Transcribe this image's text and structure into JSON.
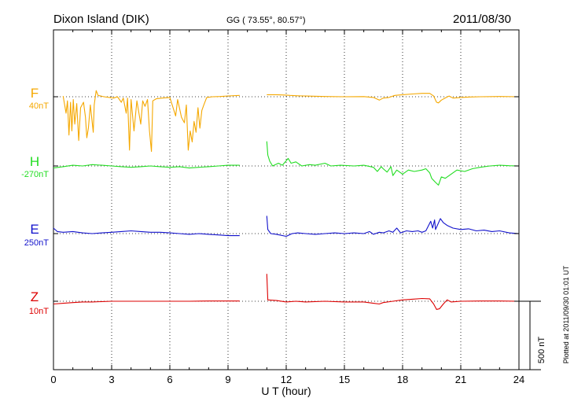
{
  "header": {
    "station": "Dixon Island (DIK)",
    "coords": "GG ( 73.55°,  80.57°)",
    "date": "2011/08/30"
  },
  "chart_data": {
    "type": "line",
    "xlabel": "U T (hour)",
    "xlim": [
      0,
      24
    ],
    "xticks": [
      "0",
      "3",
      "6",
      "9",
      "12",
      "15",
      "18",
      "21",
      "24"
    ],
    "grid": "dotted vertical lines every 3 hours, dotted baseline per component",
    "scale_bar": {
      "label": "500 nT",
      "value_nT": 500
    },
    "plot_note": "Plotted at 2011/09/30 01:01 UT",
    "series": [
      {
        "name": "F",
        "baseline_label": "40nT",
        "color": "#f5a800",
        "points": [
          [
            0.5,
            5
          ],
          [
            0.65,
            -120
          ],
          [
            0.72,
            -30
          ],
          [
            0.8,
            -280
          ],
          [
            0.88,
            -40
          ],
          [
            0.95,
            -250
          ],
          [
            1.02,
            -20
          ],
          [
            1.1,
            -200
          ],
          [
            1.2,
            -50
          ],
          [
            1.3,
            -320
          ],
          [
            1.4,
            -80
          ],
          [
            1.55,
            -40
          ],
          [
            1.65,
            -150
          ],
          [
            1.72,
            -300
          ],
          [
            1.8,
            -230
          ],
          [
            1.9,
            -60
          ],
          [
            2.05,
            -260
          ],
          [
            2.1,
            -60
          ],
          [
            2.2,
            45
          ],
          [
            2.3,
            10
          ],
          [
            2.45,
            5
          ],
          [
            2.6,
            0
          ],
          [
            2.9,
            -5
          ],
          [
            3.1,
            -10
          ],
          [
            3.3,
            0
          ],
          [
            3.5,
            -40
          ],
          [
            3.6,
            -10
          ],
          [
            3.75,
            -120
          ],
          [
            3.82,
            -10
          ],
          [
            3.92,
            -390
          ],
          [
            4.0,
            -20
          ],
          [
            4.15,
            -250
          ],
          [
            4.3,
            -30
          ],
          [
            4.5,
            -200
          ],
          [
            4.6,
            -30
          ],
          [
            4.72,
            -70
          ],
          [
            4.85,
            -20
          ],
          [
            4.95,
            -250
          ],
          [
            5.05,
            -400
          ],
          [
            5.12,
            -30
          ],
          [
            5.3,
            -15
          ],
          [
            5.6,
            -10
          ],
          [
            6.0,
            -5
          ],
          [
            6.3,
            -140
          ],
          [
            6.4,
            -20
          ],
          [
            6.6,
            -150
          ],
          [
            6.75,
            -190
          ],
          [
            6.85,
            -60
          ],
          [
            6.95,
            -390
          ],
          [
            7.05,
            -250
          ],
          [
            7.15,
            -330
          ],
          [
            7.25,
            -180
          ],
          [
            7.35,
            -260
          ],
          [
            7.45,
            -80
          ],
          [
            7.55,
            -230
          ],
          [
            7.65,
            -100
          ],
          [
            7.75,
            -60
          ],
          [
            7.9,
            -5
          ],
          [
            8.2,
            0
          ],
          [
            8.6,
            2
          ],
          [
            9.0,
            6
          ],
          [
            9.6,
            10
          ],
          [
            null,
            null
          ],
          [
            11.0,
            15
          ],
          [
            11.5,
            15
          ],
          [
            12.0,
            12
          ],
          [
            12.2,
            10
          ],
          [
            12.6,
            7
          ],
          [
            13.0,
            5
          ],
          [
            14.0,
            2
          ],
          [
            15.0,
            0
          ],
          [
            16.0,
            1
          ],
          [
            16.5,
            -5
          ],
          [
            16.8,
            -25
          ],
          [
            17.0,
            -10
          ],
          [
            17.3,
            -5
          ],
          [
            17.6,
            10
          ],
          [
            18.0,
            15
          ],
          [
            18.5,
            20
          ],
          [
            19.0,
            25
          ],
          [
            19.4,
            25
          ],
          [
            19.6,
            5
          ],
          [
            19.75,
            -40
          ],
          [
            19.85,
            -45
          ],
          [
            20.0,
            -25
          ],
          [
            20.25,
            -5
          ],
          [
            20.4,
            5
          ],
          [
            20.6,
            -10
          ],
          [
            21.0,
            -5
          ],
          [
            21.5,
            -2
          ],
          [
            22.0,
            0
          ],
          [
            23.0,
            2
          ],
          [
            24.0,
            0
          ]
        ]
      },
      {
        "name": "H",
        "baseline_label": "-270nT",
        "color": "#22dd22",
        "points": [
          [
            0.0,
            -15
          ],
          [
            0.5,
            -5
          ],
          [
            1.0,
            5
          ],
          [
            1.5,
            0
          ],
          [
            2.0,
            10
          ],
          [
            2.5,
            5
          ],
          [
            3.0,
            0
          ],
          [
            3.5,
            -5
          ],
          [
            4.0,
            -10
          ],
          [
            4.5,
            -5
          ],
          [
            5.0,
            0
          ],
          [
            5.5,
            -5
          ],
          [
            6.0,
            -10
          ],
          [
            6.5,
            -5
          ],
          [
            7.0,
            -15
          ],
          [
            7.5,
            -10
          ],
          [
            8.0,
            -5
          ],
          [
            8.5,
            0
          ],
          [
            9.0,
            5
          ],
          [
            9.6,
            5
          ],
          [
            null,
            null
          ],
          [
            11.0,
            180
          ],
          [
            11.05,
            80
          ],
          [
            11.15,
            35
          ],
          [
            11.3,
            0
          ],
          [
            11.6,
            20
          ],
          [
            11.8,
            5
          ],
          [
            12.1,
            55
          ],
          [
            12.25,
            20
          ],
          [
            12.5,
            30
          ],
          [
            12.8,
            0
          ],
          [
            13.2,
            10
          ],
          [
            13.5,
            5
          ],
          [
            14.0,
            20
          ],
          [
            14.3,
            0
          ],
          [
            14.8,
            5
          ],
          [
            15.5,
            0
          ],
          [
            16.0,
            5
          ],
          [
            16.5,
            -10
          ],
          [
            16.7,
            -40
          ],
          [
            16.9,
            -5
          ],
          [
            17.0,
            -20
          ],
          [
            17.2,
            -45
          ],
          [
            17.4,
            -5
          ],
          [
            17.5,
            -70
          ],
          [
            17.7,
            -30
          ],
          [
            18.0,
            -60
          ],
          [
            18.3,
            -30
          ],
          [
            18.6,
            -40
          ],
          [
            19.0,
            -30
          ],
          [
            19.2,
            -20
          ],
          [
            19.4,
            -50
          ],
          [
            19.5,
            -90
          ],
          [
            19.7,
            -120
          ],
          [
            19.85,
            -140
          ],
          [
            20.0,
            -80
          ],
          [
            20.2,
            -90
          ],
          [
            20.5,
            -60
          ],
          [
            20.8,
            -30
          ],
          [
            21.2,
            -40
          ],
          [
            21.6,
            -20
          ],
          [
            22.0,
            -10
          ],
          [
            22.5,
            0
          ],
          [
            23.0,
            5
          ],
          [
            23.5,
            2
          ],
          [
            24.0,
            0
          ]
        ]
      },
      {
        "name": "E",
        "baseline_label": "250nT",
        "color": "#1111cc",
        "points": [
          [
            0.0,
            40
          ],
          [
            0.2,
            15
          ],
          [
            0.5,
            10
          ],
          [
            1.0,
            15
          ],
          [
            1.5,
            5
          ],
          [
            2.0,
            0
          ],
          [
            2.5,
            5
          ],
          [
            3.0,
            10
          ],
          [
            3.5,
            15
          ],
          [
            4.0,
            20
          ],
          [
            4.5,
            15
          ],
          [
            5.0,
            10
          ],
          [
            5.5,
            10
          ],
          [
            6.0,
            5
          ],
          [
            6.5,
            0
          ],
          [
            7.0,
            -5
          ],
          [
            7.5,
            0
          ],
          [
            8.0,
            -5
          ],
          [
            8.5,
            -10
          ],
          [
            9.0,
            -15
          ],
          [
            9.6,
            -15
          ],
          [
            null,
            null
          ],
          [
            11.0,
            130
          ],
          [
            11.05,
            30
          ],
          [
            11.2,
            0
          ],
          [
            11.5,
            -5
          ],
          [
            12.0,
            -20
          ],
          [
            12.3,
            0
          ],
          [
            12.6,
            5
          ],
          [
            13.0,
            0
          ],
          [
            13.5,
            -5
          ],
          [
            14.0,
            0
          ],
          [
            14.5,
            5
          ],
          [
            15.0,
            0
          ],
          [
            15.5,
            5
          ],
          [
            16.0,
            0
          ],
          [
            16.3,
            15
          ],
          [
            16.5,
            -5
          ],
          [
            16.8,
            10
          ],
          [
            17.0,
            5
          ],
          [
            17.3,
            20
          ],
          [
            17.5,
            10
          ],
          [
            17.7,
            40
          ],
          [
            17.9,
            5
          ],
          [
            18.2,
            20
          ],
          [
            18.5,
            15
          ],
          [
            18.8,
            20
          ],
          [
            19.0,
            10
          ],
          [
            19.2,
            20
          ],
          [
            19.45,
            90
          ],
          [
            19.55,
            40
          ],
          [
            19.65,
            100
          ],
          [
            19.7,
            30
          ],
          [
            19.95,
            110
          ],
          [
            20.1,
            80
          ],
          [
            20.3,
            60
          ],
          [
            20.6,
            40
          ],
          [
            21.0,
            30
          ],
          [
            21.4,
            35
          ],
          [
            21.8,
            20
          ],
          [
            22.2,
            25
          ],
          [
            22.6,
            15
          ],
          [
            23.0,
            20
          ],
          [
            23.5,
            5
          ],
          [
            24.0,
            0
          ]
        ]
      },
      {
        "name": "Z",
        "baseline_label": "10nT",
        "color": "#dd0000",
        "points": [
          [
            0.0,
            -20
          ],
          [
            0.5,
            -15
          ],
          [
            1.0,
            -10
          ],
          [
            1.5,
            -5
          ],
          [
            2.0,
            -5
          ],
          [
            3.0,
            0
          ],
          [
            4.0,
            0
          ],
          [
            5.0,
            0
          ],
          [
            6.0,
            0
          ],
          [
            7.0,
            0
          ],
          [
            8.0,
            2
          ],
          [
            9.0,
            2
          ],
          [
            9.6,
            2
          ],
          [
            null,
            null
          ],
          [
            11.0,
            200
          ],
          [
            11.05,
            10
          ],
          [
            11.5,
            5
          ],
          [
            12.0,
            -5
          ],
          [
            12.5,
            0
          ],
          [
            13.0,
            -5
          ],
          [
            14.0,
            0
          ],
          [
            15.0,
            -5
          ],
          [
            16.0,
            -5
          ],
          [
            16.5,
            -15
          ],
          [
            16.8,
            -20
          ],
          [
            17.0,
            -10
          ],
          [
            17.5,
            0
          ],
          [
            18.0,
            10
          ],
          [
            18.5,
            15
          ],
          [
            19.0,
            20
          ],
          [
            19.4,
            18
          ],
          [
            19.6,
            -20
          ],
          [
            19.75,
            -60
          ],
          [
            19.9,
            -55
          ],
          [
            20.1,
            -20
          ],
          [
            20.3,
            10
          ],
          [
            20.5,
            -5
          ],
          [
            21.0,
            0
          ],
          [
            22.0,
            2
          ],
          [
            23.0,
            2
          ],
          [
            24.0,
            0
          ]
        ]
      }
    ]
  }
}
